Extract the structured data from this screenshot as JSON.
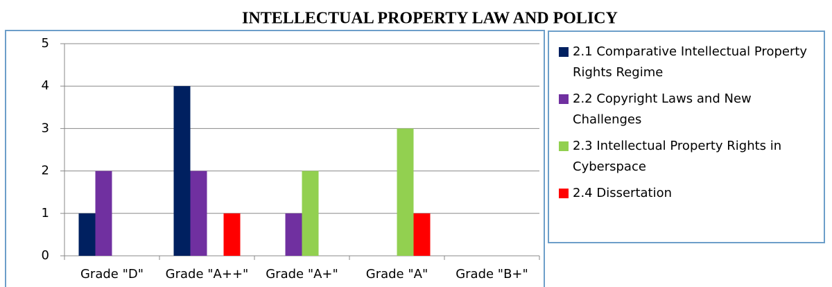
{
  "chart_data": {
    "type": "bar",
    "title": "INTELLECTUAL PROPERTY LAW AND POLICY",
    "categories": [
      "Grade \"D\"",
      "Grade \"A++\"",
      "Grade \"A+\"",
      "Grade \"A\"",
      "Grade \"B+\""
    ],
    "series": [
      {
        "name": "2.1 Comparative Intellectual Property Rights Regime",
        "color": "#002060",
        "values": [
          1,
          4,
          0,
          0,
          0
        ]
      },
      {
        "name": "2.2 Copyright Laws and New Challenges",
        "color": "#7030a0",
        "values": [
          2,
          2,
          1,
          0,
          0
        ]
      },
      {
        "name": "2.3 Intellectual Property Rights in Cyberspace",
        "color": "#92d050",
        "values": [
          0,
          0,
          2,
          3,
          0
        ]
      },
      {
        "name": "2.4 Dissertation",
        "color": "#ff0000",
        "values": [
          0,
          1,
          0,
          1,
          0
        ]
      }
    ],
    "ylim": [
      0,
      5
    ],
    "yticks": [
      0,
      1,
      2,
      3,
      4,
      5
    ],
    "grid": true,
    "legend": "right"
  }
}
